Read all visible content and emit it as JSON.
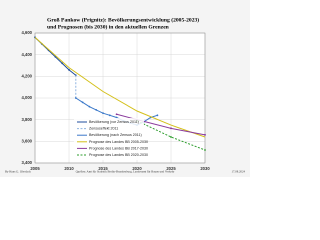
{
  "chart_data": {
    "type": "line",
    "title": "Groß Pankow (Prignitz): Bevölkerungsentwicklung (2005-2023)",
    "subtitle": "und Prognosen (bis 2030) in den aktuellen Grenzen",
    "author": "By Hans G. Oberlack",
    "source": "Quellen: Amt für Statistik Berlin-Brandenburg, Landesamt für Bauen und Verkehr",
    "date": "17.08.2024",
    "xlim": [
      2005,
      2030
    ],
    "xticks": [
      2005,
      2010,
      2015,
      2020,
      2025,
      2030
    ],
    "ylim": [
      3400,
      4600
    ],
    "yticks": [
      {
        "value": 3400,
        "label": "3,400"
      },
      {
        "value": 3600,
        "label": "3,600"
      },
      {
        "value": 3800,
        "label": "3,800"
      },
      {
        "value": 4000,
        "label": "4,000"
      },
      {
        "value": 4200,
        "label": "4,200"
      },
      {
        "value": 4400,
        "label": "4,400"
      },
      {
        "value": 4600,
        "label": "4,600"
      }
    ],
    "grid": true,
    "series": [
      {
        "name": "Bevölkerung (vor Zensus 2011)",
        "color": "#1f4e9c",
        "markers": true,
        "dash": false,
        "x": [
          2005,
          2006,
          2007,
          2008,
          2009,
          2010,
          2011
        ],
        "values": [
          4560,
          4500,
          4440,
          4380,
          4320,
          4260,
          4210
        ]
      },
      {
        "name": "Zensuseffekt 2011",
        "color": "#8fb4e0",
        "markers": false,
        "dash": true,
        "x": [
          2011,
          2011
        ],
        "values": [
          4210,
          4000
        ]
      },
      {
        "name": "Bevölkerung (nach Zensus 2011)",
        "color": "#3a78c9",
        "markers": true,
        "dash": false,
        "x": [
          2011,
          2012,
          2013,
          2014,
          2015,
          2016,
          2017,
          2018,
          2019,
          2020,
          2021,
          2022,
          2023
        ],
        "values": [
          4000,
          3960,
          3920,
          3890,
          3860,
          3840,
          3820,
          3790,
          3770,
          3750,
          3780,
          3820,
          3840
        ]
      },
      {
        "name": "Prognose des Landes BB 2005-2030",
        "color": "#d4c01a",
        "markers": false,
        "dash": false,
        "x": [
          2005,
          2010,
          2015,
          2020,
          2025,
          2030
        ],
        "values": [
          4560,
          4280,
          4060,
          3880,
          3750,
          3640
        ]
      },
      {
        "name": "Prognose des Landes BB 2017-2030",
        "color": "#8a3a9c",
        "markers": true,
        "dash": false,
        "x": [
          2017,
          2020,
          2025,
          2030
        ],
        "values": [
          3850,
          3800,
          3720,
          3660
        ]
      },
      {
        "name": "Prognose des Landes BB 2020-2030",
        "color": "#2e9e2e",
        "markers": true,
        "dash": true,
        "x": [
          2020,
          2025,
          2030
        ],
        "values": [
          3790,
          3640,
          3520
        ]
      }
    ]
  }
}
